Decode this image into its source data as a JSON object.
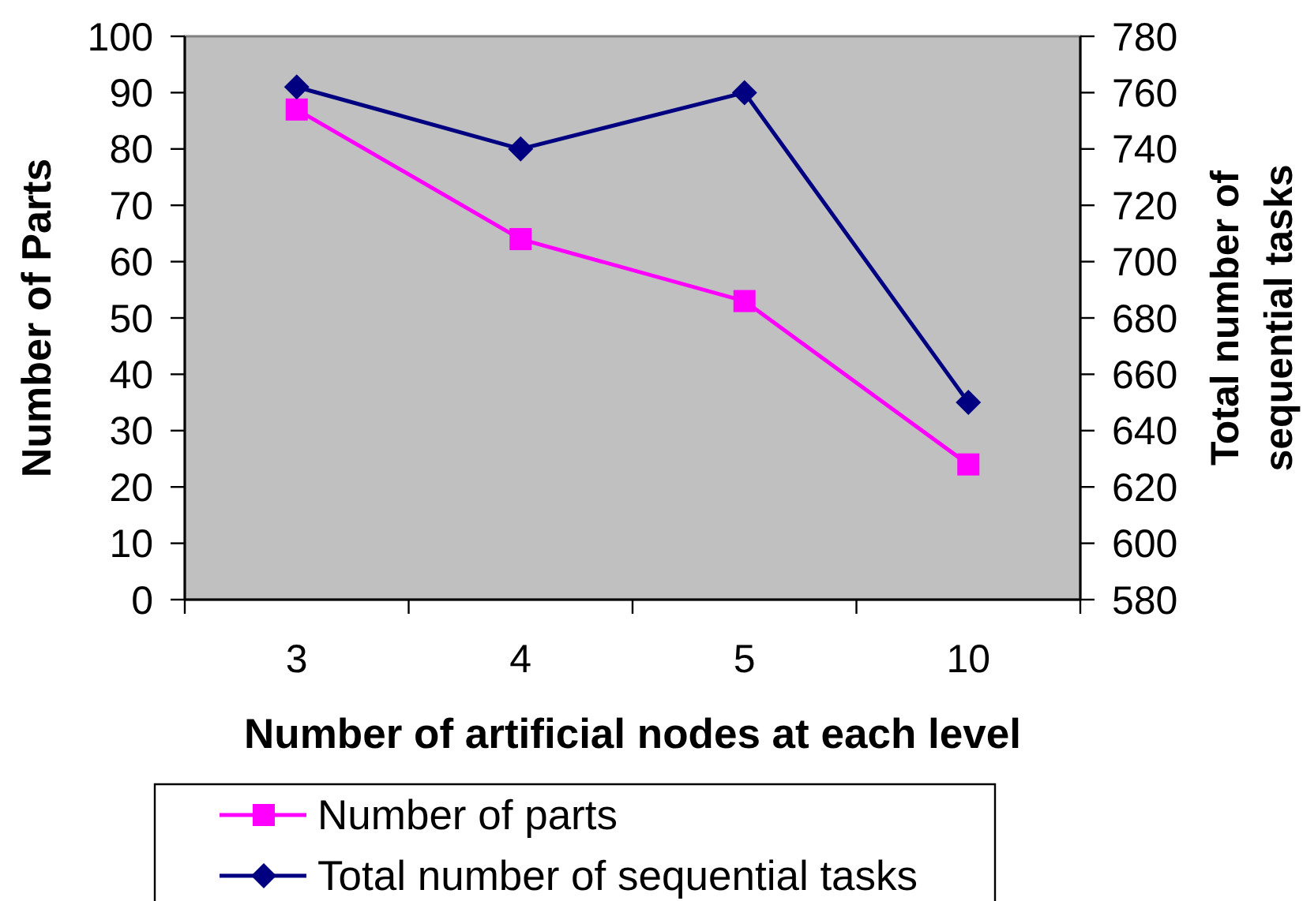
{
  "chart_data": {
    "type": "line",
    "categories": [
      "3",
      "4",
      "5",
      "10"
    ],
    "xlabel": "Number of artificial nodes at each level",
    "ylabel": "Number of Parts",
    "y2label": "Total number of sequential tasks",
    "ylim": [
      0,
      100
    ],
    "yticks": [
      0,
      10,
      20,
      30,
      40,
      50,
      60,
      70,
      80,
      90,
      100
    ],
    "y2lim": [
      580,
      780
    ],
    "y2ticks": [
      580,
      600,
      620,
      640,
      660,
      680,
      700,
      720,
      740,
      760,
      780
    ],
    "series": [
      {
        "name": "Number of parts",
        "color": "#ff00ff",
        "marker": "square",
        "values": [
          87,
          64,
          53,
          24
        ]
      },
      {
        "name": "Total number of sequential tasks",
        "color": "#000080",
        "marker": "diamond",
        "axis": "y2",
        "values": [
          762,
          740,
          760,
          650
        ]
      }
    ],
    "legend": "bottom"
  }
}
